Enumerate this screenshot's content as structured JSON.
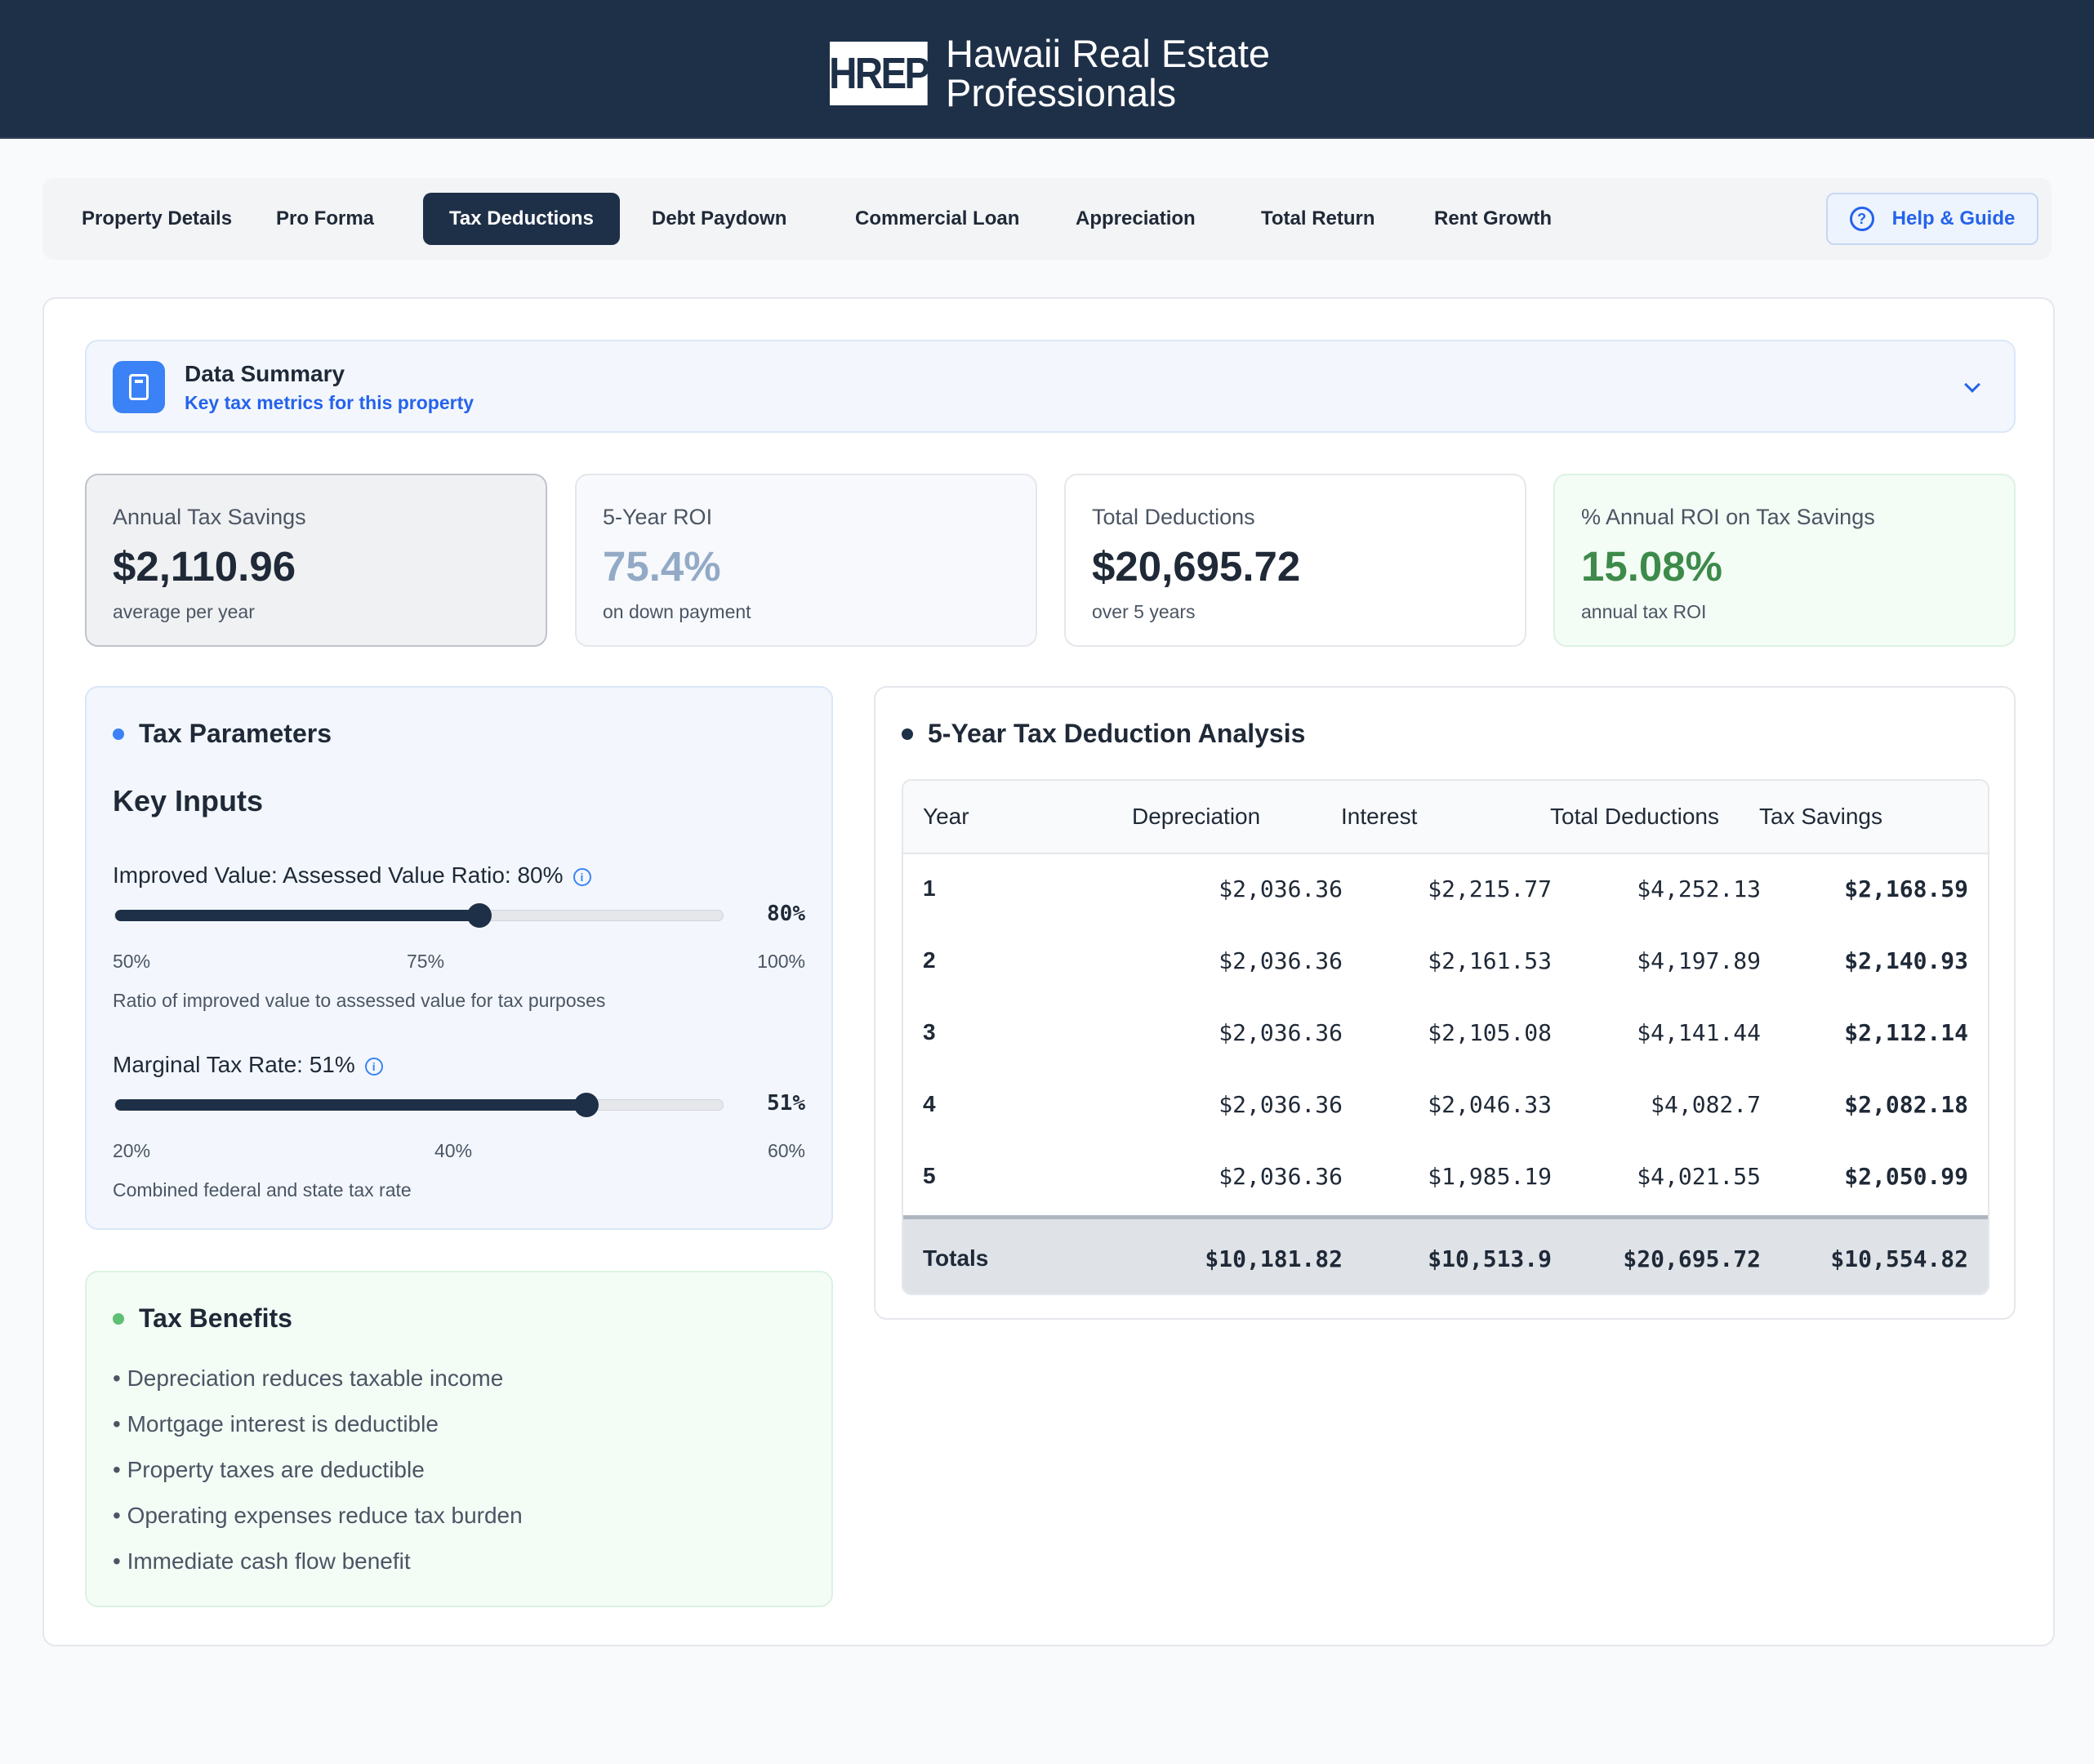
{
  "header": {
    "logo_text": "HREP",
    "brand_line1": "Hawaii Real Estate",
    "brand_line2": "Professionals"
  },
  "nav": {
    "tabs": [
      {
        "label": "Property Details",
        "active": false
      },
      {
        "label": "Pro Forma",
        "active": false
      },
      {
        "label": "Tax Deductions",
        "active": true
      },
      {
        "label": "Debt Paydown",
        "active": false
      },
      {
        "label": "Commercial Loan",
        "active": false
      },
      {
        "label": "Appreciation",
        "active": false
      },
      {
        "label": "Total Return",
        "active": false
      },
      {
        "label": "Rent Growth",
        "active": false
      }
    ],
    "help_label": "Help & Guide",
    "help_icon": "question-circle-icon"
  },
  "summary": {
    "title": "Data Summary",
    "subtitle": "Key tax metrics for this property",
    "icon": "calculator-icon"
  },
  "metrics": [
    {
      "label": "Annual Tax Savings",
      "value": "$2,110.96",
      "sub": "average per year",
      "value_color": "#1f2937"
    },
    {
      "label": "5-Year ROI",
      "value": "75.4%",
      "sub": "on down payment",
      "value_color": "#93aac6"
    },
    {
      "label": "Total Deductions",
      "value": "$20,695.72",
      "sub": "over 5 years",
      "value_color": "#1f2937"
    },
    {
      "label": "% Annual ROI on Tax Savings",
      "value": "15.08%",
      "sub": "annual tax ROI",
      "value_color": "#3d8a4a"
    }
  ],
  "params": {
    "title": "Tax Parameters",
    "subtitle": "Key Inputs",
    "sliders": [
      {
        "label": "Improved Value: Assessed Value Ratio: 80%",
        "value_text": "80%",
        "min_label": "50%",
        "mid_label": "75%",
        "max_label": "100%",
        "fraction": 0.6,
        "help": "Ratio of improved value to assessed value for tax purposes"
      },
      {
        "label": "Marginal Tax Rate: 51%",
        "value_text": "51%",
        "min_label": "20%",
        "mid_label": "40%",
        "max_label": "60%",
        "fraction": 0.775,
        "help": "Combined federal and state tax rate"
      }
    ]
  },
  "benefits": {
    "title": "Tax Benefits",
    "items": [
      "• Depreciation reduces taxable income",
      "• Mortgage interest is deductible",
      "• Property taxes are deductible",
      "• Operating expenses reduce tax burden",
      "• Immediate cash flow benefit"
    ]
  },
  "analysis": {
    "title": "5-Year Tax Deduction Analysis",
    "headers": [
      "Year",
      "Depreciation",
      "Interest",
      "Total Deductions",
      "Tax Savings"
    ],
    "rows": [
      [
        "1",
        "$2,036.36",
        "$2,215.77",
        "$4,252.13",
        "$2,168.59"
      ],
      [
        "2",
        "$2,036.36",
        "$2,161.53",
        "$4,197.89",
        "$2,140.93"
      ],
      [
        "3",
        "$2,036.36",
        "$2,105.08",
        "$4,141.44",
        "$2,112.14"
      ],
      [
        "4",
        "$2,036.36",
        "$2,046.33",
        "$4,082.7",
        "$2,082.18"
      ],
      [
        "5",
        "$2,036.36",
        "$1,985.19",
        "$4,021.55",
        "$2,050.99"
      ]
    ],
    "totals": [
      "Totals",
      "$10,181.82",
      "$10,513.9",
      "$20,695.72",
      "$10,554.82"
    ]
  },
  "colors": {
    "navy": "#1e3048",
    "accent_blue": "#3b82f6",
    "accent_green": "#5fbf72"
  }
}
